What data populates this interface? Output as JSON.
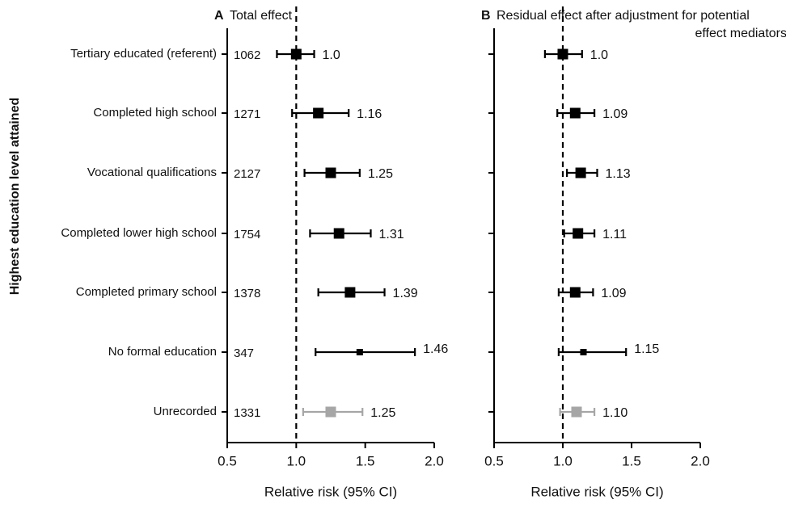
{
  "y_axis_title": "Highest education level attained",
  "categories": [
    "Tertiary educated (referent)",
    "Completed high school",
    "Vocational qualifications",
    "Completed lower high school",
    "Completed primary school",
    "No formal education",
    "Unrecorded"
  ],
  "counts": [
    "1062",
    "1271",
    "2127",
    "1754",
    "1378",
    "347",
    "1331"
  ],
  "colors": {
    "main": "#000000",
    "unrecorded": "#a6a6a6"
  },
  "chart_data": [
    {
      "type": "scatter",
      "panel_letter": "A",
      "title": "Total effect",
      "xlabel": "Relative risk (95% CI)",
      "xlim": [
        0.5,
        2.0
      ],
      "xticks": [
        "0.5",
        "1.0",
        "1.5",
        "2.0"
      ],
      "reference_line": 1.0,
      "points": [
        {
          "estimate": 1.0,
          "lower": 0.86,
          "upper": 1.13,
          "label": "1.0"
        },
        {
          "estimate": 1.16,
          "lower": 0.97,
          "upper": 1.38,
          "label": "1.16"
        },
        {
          "estimate": 1.25,
          "lower": 1.06,
          "upper": 1.46,
          "label": "1.25"
        },
        {
          "estimate": 1.31,
          "lower": 1.1,
          "upper": 1.54,
          "label": "1.31"
        },
        {
          "estimate": 1.39,
          "lower": 1.16,
          "upper": 1.64,
          "label": "1.39"
        },
        {
          "estimate": 1.46,
          "lower": 1.14,
          "upper": 1.86,
          "label": "1.46"
        },
        {
          "estimate": 1.25,
          "lower": 1.05,
          "upper": 1.48,
          "label": "1.25"
        }
      ]
    },
    {
      "type": "scatter",
      "panel_letter": "B",
      "title": "Residual effect after adjustment for potential effect mediators",
      "title_lines": [
        "Residual effect after adjustment for potential",
        "effect mediators"
      ],
      "xlabel": "Relative risk (95% CI)",
      "xlim": [
        0.5,
        2.0
      ],
      "xticks": [
        "0.5",
        "1.0",
        "1.5",
        "2.0"
      ],
      "reference_line": 1.0,
      "points": [
        {
          "estimate": 1.0,
          "lower": 0.87,
          "upper": 1.14,
          "label": "1.0"
        },
        {
          "estimate": 1.09,
          "lower": 0.96,
          "upper": 1.23,
          "label": "1.09"
        },
        {
          "estimate": 1.13,
          "lower": 1.03,
          "upper": 1.25,
          "label": "1.13"
        },
        {
          "estimate": 1.11,
          "lower": 1.01,
          "upper": 1.23,
          "label": "1.11"
        },
        {
          "estimate": 1.09,
          "lower": 0.97,
          "upper": 1.22,
          "label": "1.09"
        },
        {
          "estimate": 1.15,
          "lower": 0.97,
          "upper": 1.46,
          "label": "1.15"
        },
        {
          "estimate": 1.1,
          "lower": 0.98,
          "upper": 1.23,
          "label": "1.10"
        }
      ]
    }
  ]
}
